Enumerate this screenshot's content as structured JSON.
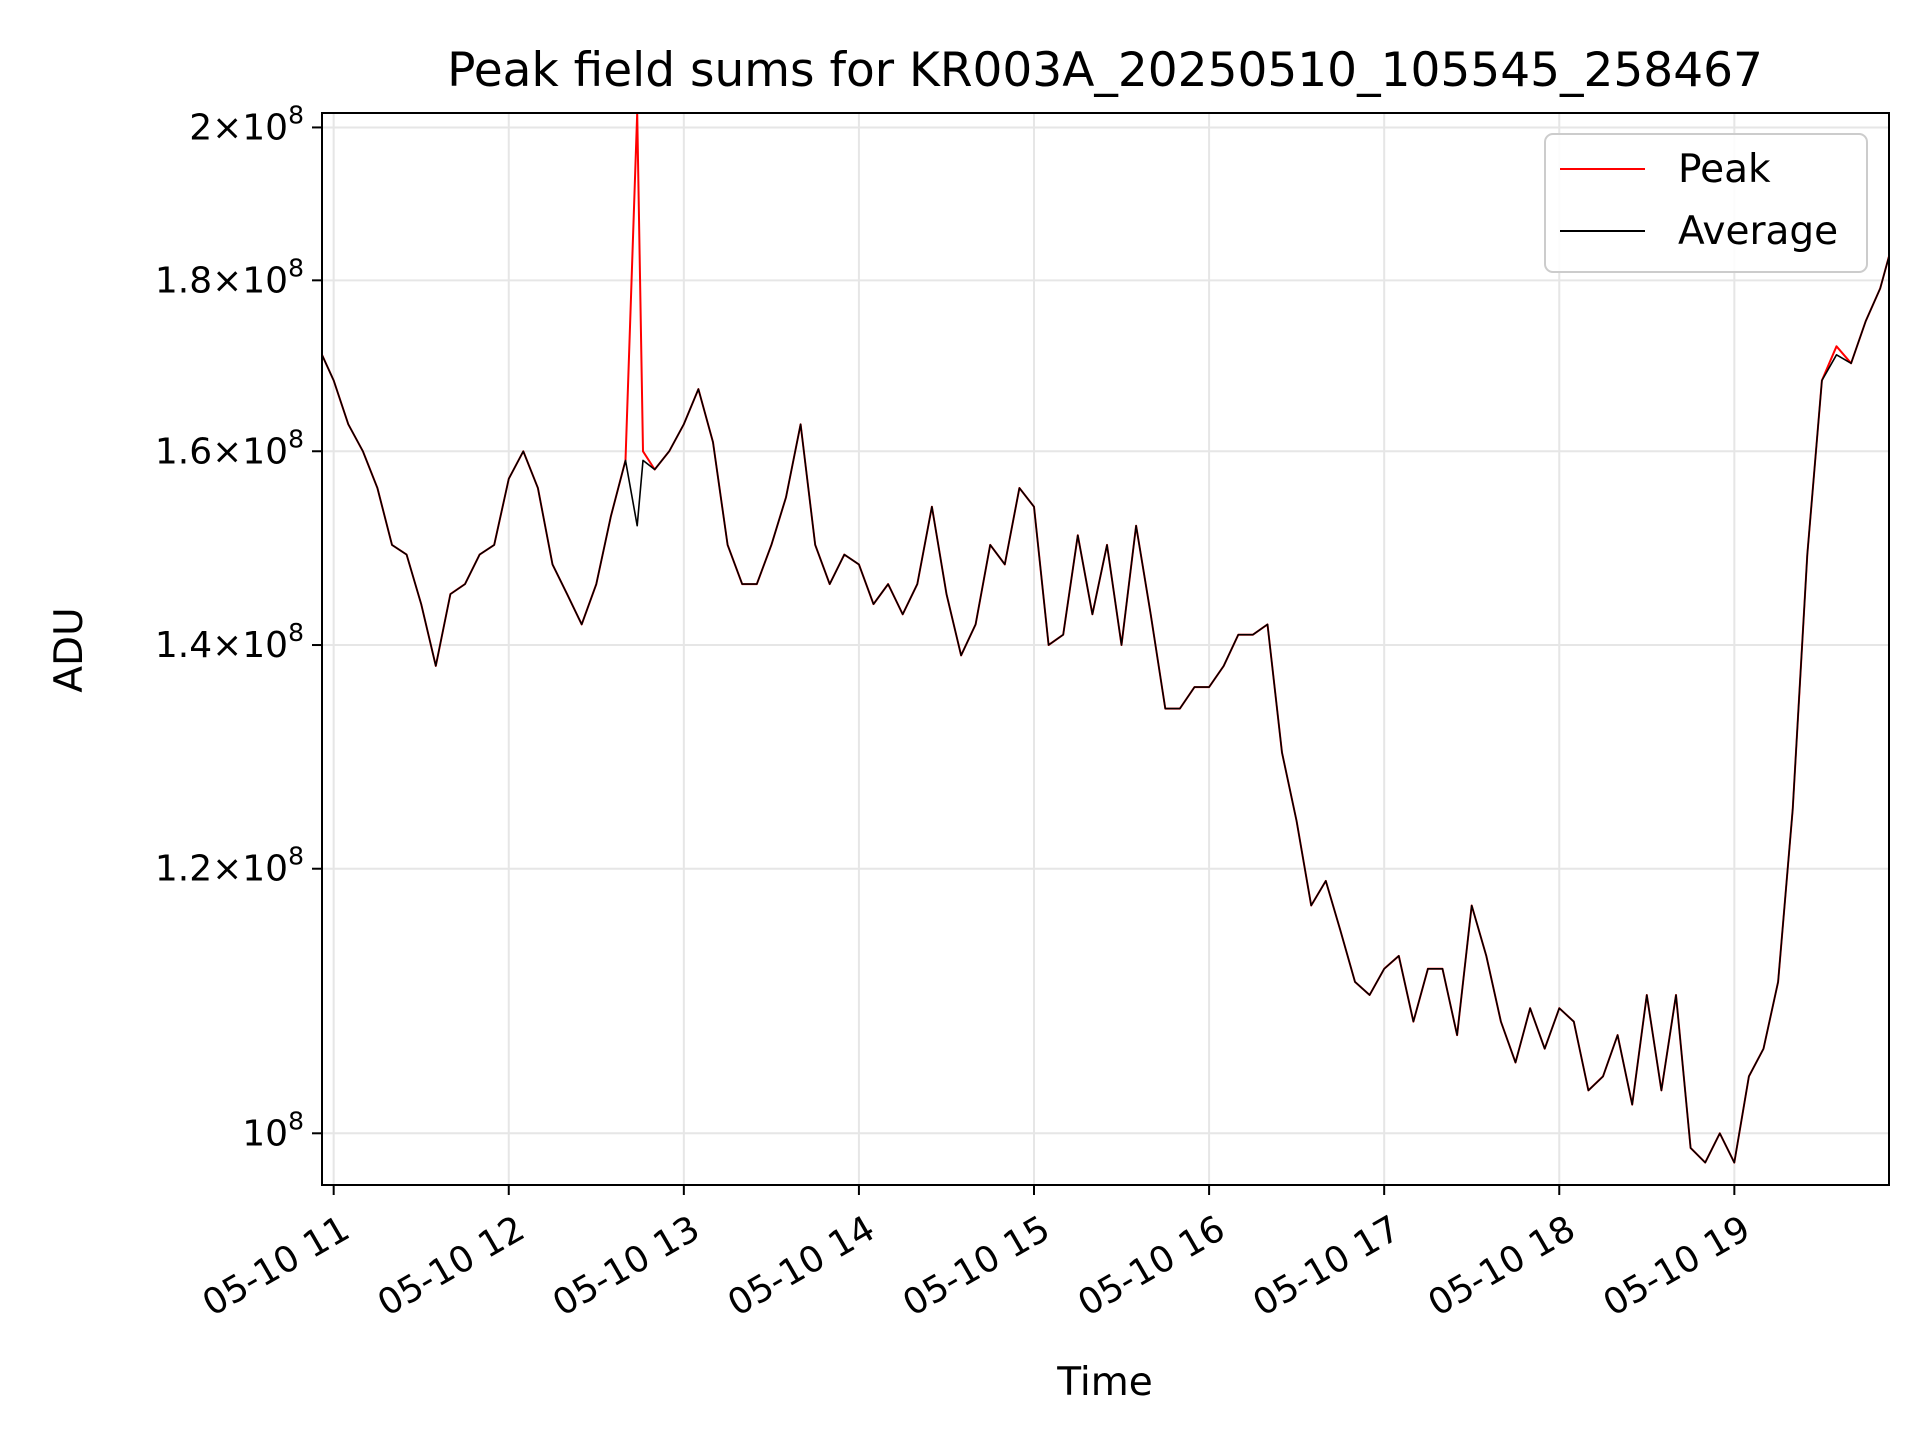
{
  "chart_data": {
    "type": "line",
    "title": "Peak field sums for KR003A_20250510_105545_258467",
    "xlabel": "Time",
    "ylabel": "ADU",
    "yscale": "log",
    "ylim": [
      96500000,
      202000000
    ],
    "xlim": [
      "05-10 10:56",
      "05-10 19:53"
    ],
    "grid": true,
    "legend": "top-right",
    "x_ticks": [
      "05-10 11",
      "05-10 12",
      "05-10 13",
      "05-10 14",
      "05-10 15",
      "05-10 16",
      "05-10 17",
      "05-10 18",
      "05-10 19"
    ],
    "x_tick_times": [
      "05-10 11:00",
      "05-10 12:00",
      "05-10 13:00",
      "05-10 14:00",
      "05-10 15:00",
      "05-10 16:00",
      "05-10 17:00",
      "05-10 18:00",
      "05-10 19:00"
    ],
    "y_ticks": [
      {
        "value": 100000000,
        "mantissa": "",
        "base": "10",
        "exp": "8"
      },
      {
        "value": 120000000,
        "mantissa": "1.2",
        "base": "10",
        "exp": "8"
      },
      {
        "value": 140000000,
        "mantissa": "1.4",
        "base": "10",
        "exp": "8"
      },
      {
        "value": 160000000,
        "mantissa": "1.6",
        "base": "10",
        "exp": "8"
      },
      {
        "value": 180000000,
        "mantissa": "1.8",
        "base": "10",
        "exp": "8"
      },
      {
        "value": 200000000,
        "mantissa": "2",
        "base": "10",
        "exp": "8"
      }
    ],
    "x": [
      "05-10 10:56",
      "05-10 11:00",
      "05-10 11:05",
      "05-10 11:10",
      "05-10 11:15",
      "05-10 11:20",
      "05-10 11:25",
      "05-10 11:30",
      "05-10 11:35",
      "05-10 11:40",
      "05-10 11:45",
      "05-10 11:50",
      "05-10 11:55",
      "05-10 12:00",
      "05-10 12:05",
      "05-10 12:10",
      "05-10 12:15",
      "05-10 12:20",
      "05-10 12:25",
      "05-10 12:30",
      "05-10 12:35",
      "05-10 12:40",
      "05-10 12:44",
      "05-10 12:46",
      "05-10 12:50",
      "05-10 12:55",
      "05-10 13:00",
      "05-10 13:05",
      "05-10 13:10",
      "05-10 13:15",
      "05-10 13:20",
      "05-10 13:25",
      "05-10 13:30",
      "05-10 13:35",
      "05-10 13:40",
      "05-10 13:45",
      "05-10 13:50",
      "05-10 13:55",
      "05-10 14:00",
      "05-10 14:05",
      "05-10 14:10",
      "05-10 14:15",
      "05-10 14:20",
      "05-10 14:25",
      "05-10 14:30",
      "05-10 14:35",
      "05-10 14:40",
      "05-10 14:45",
      "05-10 14:50",
      "05-10 14:55",
      "05-10 15:00",
      "05-10 15:05",
      "05-10 15:10",
      "05-10 15:15",
      "05-10 15:20",
      "05-10 15:25",
      "05-10 15:30",
      "05-10 15:35",
      "05-10 15:40",
      "05-10 15:45",
      "05-10 15:50",
      "05-10 15:55",
      "05-10 16:00",
      "05-10 16:05",
      "05-10 16:10",
      "05-10 16:15",
      "05-10 16:20",
      "05-10 16:25",
      "05-10 16:30",
      "05-10 16:35",
      "05-10 16:40",
      "05-10 16:45",
      "05-10 16:50",
      "05-10 16:55",
      "05-10 17:00",
      "05-10 17:05",
      "05-10 17:10",
      "05-10 17:15",
      "05-10 17:20",
      "05-10 17:25",
      "05-10 17:30",
      "05-10 17:35",
      "05-10 17:40",
      "05-10 17:45",
      "05-10 17:50",
      "05-10 17:55",
      "05-10 18:00",
      "05-10 18:05",
      "05-10 18:10",
      "05-10 18:15",
      "05-10 18:20",
      "05-10 18:25",
      "05-10 18:30",
      "05-10 18:35",
      "05-10 18:40",
      "05-10 18:45",
      "05-10 18:50",
      "05-10 18:55",
      "05-10 19:00",
      "05-10 19:05",
      "05-10 19:10",
      "05-10 19:15",
      "05-10 19:20",
      "05-10 19:25",
      "05-10 19:30",
      "05-10 19:35",
      "05-10 19:40",
      "05-10 19:45",
      "05-10 19:50",
      "05-10 19:53"
    ],
    "series": [
      {
        "name": "Peak",
        "color": "#ff0000",
        "values": [
          171,
          168,
          163,
          160,
          156,
          150,
          149,
          144,
          138,
          145,
          146,
          149,
          150,
          157,
          160,
          156,
          148,
          145,
          142,
          146,
          153,
          159,
          202,
          160,
          158,
          160,
          163,
          167,
          161,
          150,
          146,
          146,
          150,
          155,
          163,
          150,
          146,
          149,
          148,
          144,
          146,
          143,
          146,
          154,
          145,
          139,
          142,
          150,
          148,
          156,
          154,
          140,
          141,
          151,
          143,
          150,
          140,
          152,
          143,
          134,
          134,
          136,
          136,
          138,
          141,
          141,
          142,
          130,
          124,
          117,
          119,
          115,
          111,
          110,
          112,
          113,
          108,
          112,
          112,
          107,
          117,
          113,
          108,
          105,
          109,
          106,
          109,
          108,
          103,
          104,
          107,
          102,
          110,
          103,
          110,
          99,
          98,
          100,
          98,
          104,
          106,
          111,
          125,
          149,
          168,
          172,
          170,
          175,
          179,
          183
        ]
      },
      {
        "name": "Average",
        "color": "#000000",
        "values": [
          171,
          168,
          163,
          160,
          156,
          150,
          149,
          144,
          138,
          145,
          146,
          149,
          150,
          157,
          160,
          156,
          148,
          145,
          142,
          146,
          153,
          159,
          152,
          159,
          158,
          160,
          163,
          167,
          161,
          150,
          146,
          146,
          150,
          155,
          163,
          150,
          146,
          149,
          148,
          144,
          146,
          143,
          146,
          154,
          145,
          139,
          142,
          150,
          148,
          156,
          154,
          140,
          141,
          151,
          143,
          150,
          140,
          152,
          143,
          134,
          134,
          136,
          136,
          138,
          141,
          141,
          142,
          130,
          124,
          117,
          119,
          115,
          111,
          110,
          112,
          113,
          108,
          112,
          112,
          107,
          117,
          113,
          108,
          105,
          109,
          106,
          109,
          108,
          103,
          104,
          107,
          102,
          110,
          103,
          110,
          99,
          98,
          100,
          98,
          104,
          106,
          111,
          125,
          149,
          168,
          171,
          170,
          175,
          179,
          183
        ]
      }
    ],
    "values_unit": "x 10^6 ADU"
  }
}
